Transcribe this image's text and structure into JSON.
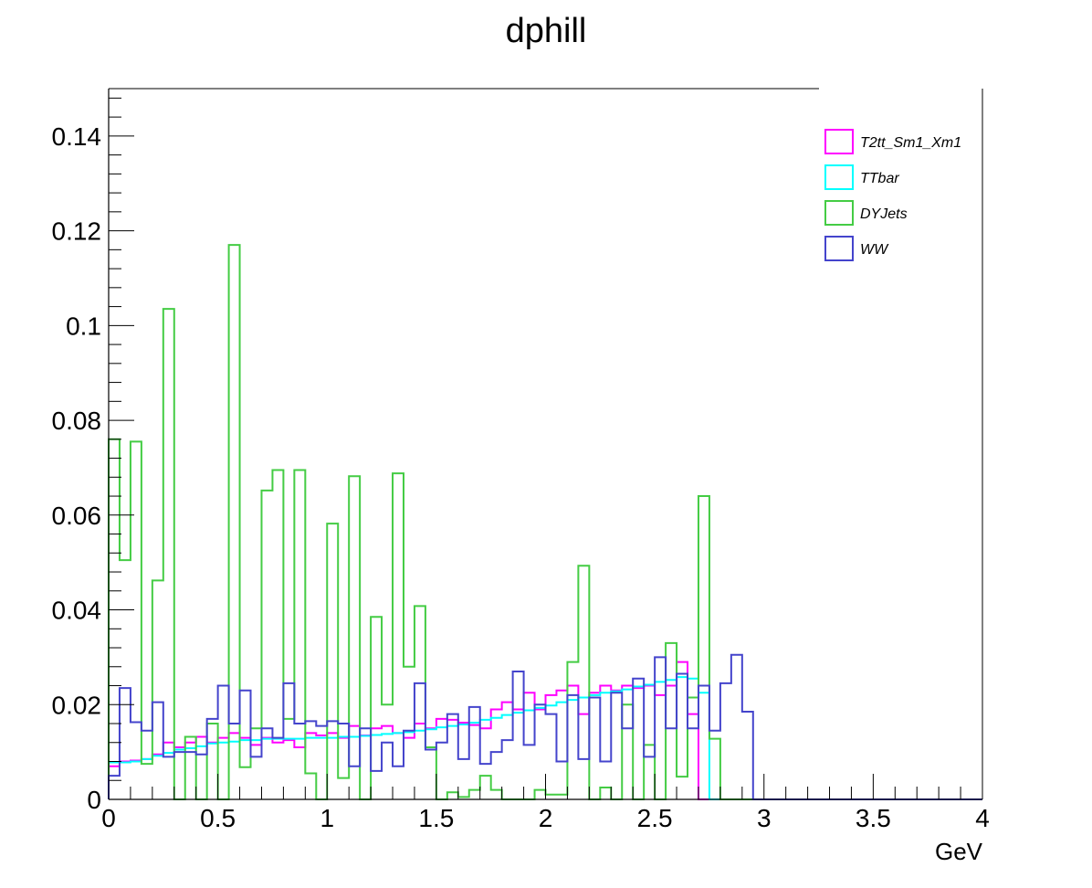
{
  "chart_data": {
    "type": "histogram",
    "title": "dphill",
    "xlabel": "GeV",
    "ylabel": "",
    "xlim": [
      0,
      4
    ],
    "ylim": [
      0,
      0.15
    ],
    "bin_width": 0.05,
    "x_ticks": [
      "0",
      "0.5",
      "1",
      "1.5",
      "2",
      "2.5",
      "3",
      "3.5",
      "4"
    ],
    "y_ticks": [
      "0",
      "0.02",
      "0.04",
      "0.06",
      "0.08",
      "0.1",
      "0.12",
      "0.14"
    ],
    "grid": false,
    "legend_position": "top-right",
    "series": [
      {
        "name": "T2tt_Sm1_Xm1",
        "color": "#ff00ff",
        "values": [
          0.007,
          0.008,
          0.0082,
          0.0085,
          0.0095,
          0.012,
          0.011,
          0.012,
          0.0132,
          0.012,
          0.013,
          0.014,
          0.013,
          0.0115,
          0.013,
          0.012,
          0.0125,
          0.011,
          0.014,
          0.0135,
          0.014,
          0.013,
          0.0155,
          0.0135,
          0.015,
          0.0155,
          0.014,
          0.013,
          0.016,
          0.015,
          0.017,
          0.0168,
          0.0162,
          0.0157,
          0.015,
          0.019,
          0.0205,
          0.019,
          0.0225,
          0.019,
          0.022,
          0.023,
          0.024,
          0.018,
          0.0225,
          0.024,
          0.023,
          0.024,
          0.0235,
          0.024,
          0.022,
          0.024,
          0.029,
          0.018,
          0,
          0,
          0,
          0,
          0,
          0,
          0,
          0,
          0,
          0,
          0,
          0,
          0,
          0,
          0,
          0,
          0,
          0,
          0,
          0,
          0,
          0,
          0,
          0,
          0,
          0
        ]
      },
      {
        "name": "TTbar",
        "color": "#00ffff",
        "values": [
          0.0078,
          0.0078,
          0.008,
          0.0085,
          0.0092,
          0.0098,
          0.0105,
          0.0108,
          0.0112,
          0.0118,
          0.012,
          0.0122,
          0.0125,
          0.0125,
          0.0128,
          0.0128,
          0.0128,
          0.0128,
          0.013,
          0.013,
          0.013,
          0.0132,
          0.0132,
          0.0134,
          0.0136,
          0.0138,
          0.014,
          0.0142,
          0.0145,
          0.0148,
          0.0152,
          0.0155,
          0.0158,
          0.0162,
          0.0168,
          0.0172,
          0.0178,
          0.0183,
          0.0188,
          0.0193,
          0.0198,
          0.0205,
          0.021,
          0.0215,
          0.022,
          0.0225,
          0.0228,
          0.0232,
          0.0238,
          0.0242,
          0.0248,
          0.0252,
          0.0258,
          0.0255,
          0.0225,
          0,
          0,
          0,
          0,
          0,
          0,
          0,
          0,
          0,
          0,
          0,
          0,
          0,
          0,
          0,
          0,
          0,
          0,
          0,
          0,
          0,
          0,
          0,
          0,
          0
        ]
      },
      {
        "name": "DYJets",
        "color": "#44cc44",
        "values": [
          0.076,
          0.0505,
          0.0755,
          0.0075,
          0.0462,
          0.1035,
          0,
          0.0132,
          0,
          0.016,
          0,
          0.117,
          0.0068,
          0.015,
          0.0652,
          0.0695,
          0.017,
          0.0695,
          0.0055,
          0,
          0.0582,
          0.0045,
          0.0682,
          0,
          0.0385,
          0.02,
          0.0688,
          0.028,
          0.0408,
          0.011,
          0,
          0.0015,
          0.0005,
          0.002,
          0.005,
          0.002,
          0,
          0,
          0,
          0.002,
          0.001,
          0.001,
          0.029,
          0.0493,
          0,
          0.0025,
          0,
          0.02,
          0,
          0.0115,
          0,
          0.033,
          0.0048,
          0.0215,
          0.064,
          0.0128,
          0,
          0,
          0,
          0,
          0,
          0,
          0,
          0,
          0,
          0,
          0,
          0,
          0,
          0,
          0,
          0,
          0,
          0,
          0,
          0,
          0,
          0,
          0,
          0
        ]
      },
      {
        "name": "WW",
        "color": "#4444cc",
        "values": [
          0.005,
          0.0235,
          0.0163,
          0.0145,
          0.0205,
          0.009,
          0.01,
          0.01,
          0.0095,
          0.017,
          0.024,
          0.016,
          0.023,
          0.009,
          0.015,
          0.013,
          0.0245,
          0.016,
          0.0165,
          0.0155,
          0.0165,
          0.016,
          0.007,
          0.015,
          0.006,
          0.012,
          0.007,
          0.0145,
          0.0245,
          0.0105,
          0.012,
          0.018,
          0.0085,
          0.0195,
          0.0075,
          0.01,
          0.0125,
          0.027,
          0.0115,
          0.02,
          0.018,
          0.008,
          0.022,
          0.0085,
          0.0215,
          0.008,
          0.0225,
          0.015,
          0.0255,
          0.009,
          0.03,
          0.015,
          0.0265,
          0.015,
          0.024,
          0.0145,
          0.0245,
          0.0305,
          0.0185,
          0,
          0,
          0,
          0,
          0,
          0,
          0,
          0,
          0,
          0,
          0,
          0,
          0,
          0,
          0,
          0,
          0,
          0,
          0,
          0,
          0
        ]
      }
    ]
  }
}
